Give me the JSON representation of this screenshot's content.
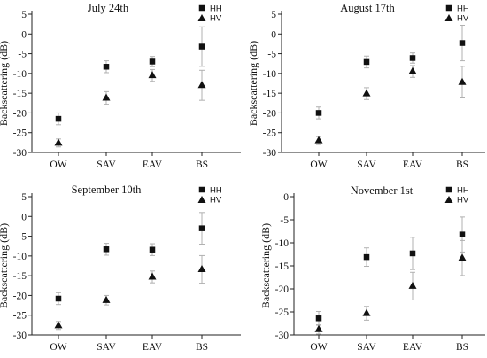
{
  "chart_data": [
    {
      "type": "scatter",
      "title": "July 24th",
      "ylabel": "Backscattering (dB)",
      "categories": [
        "OW",
        "SAV",
        "EAV",
        "BS"
      ],
      "ylim": [
        -30,
        5
      ],
      "yticks": [
        -30,
        -25,
        -20,
        -15,
        -10,
        -5,
        0,
        5
      ],
      "series": [
        {
          "name": "HH",
          "marker": "square",
          "values": [
            -21.5,
            -8.3,
            -7,
            -3.2
          ],
          "err": [
            1.5,
            1.5,
            1.3,
            5
          ]
        },
        {
          "name": "HV",
          "marker": "triangle",
          "values": [
            -27.6,
            -16.2,
            -10.5,
            -13
          ],
          "err": [
            1,
            1.6,
            1.5,
            3.8
          ]
        }
      ]
    },
    {
      "type": "scatter",
      "title": "August 17th",
      "ylabel": "Backscattering (dB)",
      "categories": [
        "OW",
        "SAV",
        "EAV",
        "BS"
      ],
      "ylim": [
        -30,
        5
      ],
      "yticks": [
        -30,
        -25,
        -20,
        -15,
        -10,
        -5,
        0,
        5
      ],
      "series": [
        {
          "name": "HH",
          "marker": "square",
          "values": [
            -20,
            -7.1,
            -6.1,
            -2.3
          ],
          "err": [
            1.5,
            1.5,
            1.3,
            4.5
          ]
        },
        {
          "name": "HV",
          "marker": "triangle",
          "values": [
            -27,
            -15.1,
            -9.5,
            -12.2
          ],
          "err": [
            1,
            1.5,
            1.5,
            4
          ]
        }
      ]
    },
    {
      "type": "scatter",
      "title": "September 10th",
      "ylabel": "Backscattering (dB)",
      "categories": [
        "OW",
        "SAV",
        "EAV",
        "BS"
      ],
      "ylim": [
        -30,
        5
      ],
      "yticks": [
        -30,
        -25,
        -20,
        -15,
        -10,
        -5,
        0,
        5
      ],
      "series": [
        {
          "name": "HH",
          "marker": "square",
          "values": [
            -20.8,
            -8.3,
            -8.4,
            -3
          ],
          "err": [
            1.5,
            1.5,
            1.5,
            4
          ]
        },
        {
          "name": "HV",
          "marker": "triangle",
          "values": [
            -27.6,
            -21.2,
            -15.3,
            -13.4
          ],
          "err": [
            1,
            1.2,
            1.5,
            3.5
          ]
        }
      ]
    },
    {
      "type": "scatter",
      "title": "November 1st",
      "ylabel": "Backscattering (dB)",
      "categories": [
        "OW",
        "SAV",
        "EAV",
        "BS"
      ],
      "ylim": [
        -30,
        0
      ],
      "yticks": [
        -30,
        -25,
        -20,
        -15,
        -10,
        -5,
        0
      ],
      "series": [
        {
          "name": "HH",
          "marker": "square",
          "values": [
            -26.4,
            -13.1,
            -12.3,
            -8.2
          ],
          "err": [
            1.5,
            2,
            3.5,
            3.8
          ]
        },
        {
          "name": "HV",
          "marker": "triangle",
          "values": [
            -28.8,
            -25.3,
            -19.4,
            -13.3
          ],
          "err": [
            1,
            1.5,
            3,
            3.8
          ]
        }
      ]
    }
  ]
}
